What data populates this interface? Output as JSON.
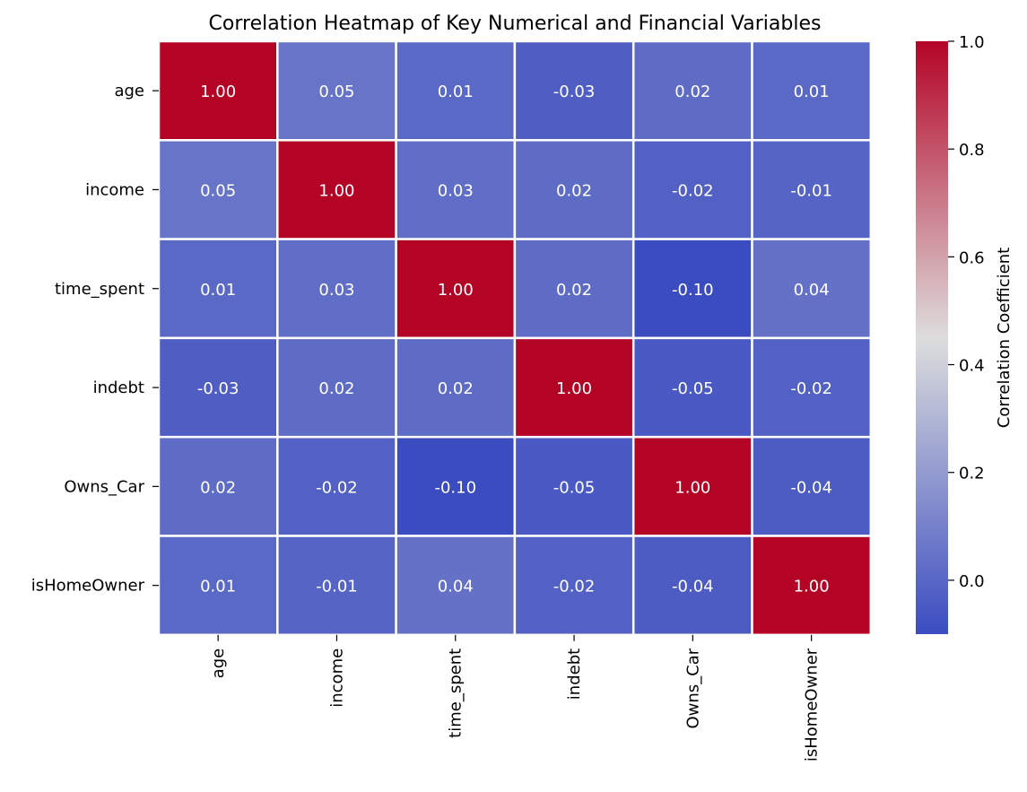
{
  "chart_data": {
    "type": "heatmap",
    "title": "Correlation Heatmap of Key Numerical and Financial Variables",
    "rows": [
      "age",
      "income",
      "time_spent",
      "indebt",
      "Owns_Car",
      "isHomeOwner"
    ],
    "columns": [
      "age",
      "income",
      "time_spent",
      "indebt",
      "Owns_Car",
      "isHomeOwner"
    ],
    "values": [
      [
        1.0,
        0.05,
        0.01,
        -0.03,
        0.02,
        0.01
      ],
      [
        0.05,
        1.0,
        0.03,
        0.02,
        -0.02,
        -0.01
      ],
      [
        0.01,
        0.03,
        1.0,
        0.02,
        -0.1,
        0.04
      ],
      [
        -0.03,
        0.02,
        0.02,
        1.0,
        -0.05,
        -0.02
      ],
      [
        0.02,
        -0.02,
        -0.1,
        -0.05,
        1.0,
        -0.04
      ],
      [
        0.01,
        -0.01,
        0.04,
        -0.02,
        -0.04,
        1.0
      ]
    ],
    "value_format": "0.00",
    "colormap": "coolwarm",
    "colormap_stops": [
      "#3b4cc0",
      "#dddddd",
      "#b40426"
    ],
    "colorbar": {
      "label": "Correlation Coefficient",
      "range": [
        -0.1,
        1.0
      ],
      "ticks": [
        "0.0",
        "0.2",
        "0.4",
        "0.6",
        "0.8",
        "1.0"
      ]
    },
    "cell_text_color": "#ffffff",
    "cell_border_color": "#ffffff"
  }
}
